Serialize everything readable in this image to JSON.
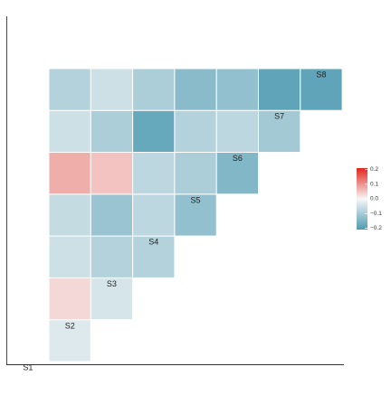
{
  "chart_data": {
    "type": "heatmap",
    "title": "",
    "xlabel": "",
    "ylabel": "",
    "variables": [
      "S1",
      "S2",
      "S3",
      "S4",
      "S5",
      "S6",
      "S7",
      "S8"
    ],
    "layout": "lower-triangle correlation matrix with variable labels on the diagonal",
    "grid": false,
    "legend": {
      "type": "colorbar",
      "position": "right",
      "range": [
        -0.2,
        0.2
      ],
      "ticks": [
        0.2,
        0.1,
        0.0,
        -0.1,
        -0.2
      ],
      "tick_labels": [
        "0.2",
        "0.1",
        "0.0",
        "−0.1",
        "−0.2"
      ],
      "colors": {
        "high": "#e2261f",
        "mid": "#f7f7f7",
        "low": "#4e9bb2"
      }
    },
    "cells": [
      {
        "row": "S2",
        "col": "S1",
        "value": -0.03
      },
      {
        "row": "S3",
        "col": "S1",
        "value": 0.03
      },
      {
        "row": "S3",
        "col": "S2",
        "value": -0.04
      },
      {
        "row": "S4",
        "col": "S1",
        "value": -0.05
      },
      {
        "row": "S4",
        "col": "S2",
        "value": -0.08
      },
      {
        "row": "S4",
        "col": "S3",
        "value": -0.08
      },
      {
        "row": "S5",
        "col": "S1",
        "value": -0.06
      },
      {
        "row": "S5",
        "col": "S2",
        "value": -0.11
      },
      {
        "row": "S5",
        "col": "S3",
        "value": -0.07
      },
      {
        "row": "S5",
        "col": "S4",
        "value": -0.12
      },
      {
        "row": "S6",
        "col": "S1",
        "value": 0.07
      },
      {
        "row": "S6",
        "col": "S2",
        "value": 0.05
      },
      {
        "row": "S6",
        "col": "S3",
        "value": -0.07
      },
      {
        "row": "S6",
        "col": "S4",
        "value": -0.09
      },
      {
        "row": "S6",
        "col": "S5",
        "value": -0.14
      },
      {
        "row": "S7",
        "col": "S1",
        "value": -0.05
      },
      {
        "row": "S7",
        "col": "S2",
        "value": -0.09
      },
      {
        "row": "S7",
        "col": "S3",
        "value": -0.17
      },
      {
        "row": "S7",
        "col": "S4",
        "value": -0.08
      },
      {
        "row": "S7",
        "col": "S5",
        "value": -0.07
      },
      {
        "row": "S7",
        "col": "S6",
        "value": -0.1
      },
      {
        "row": "S8",
        "col": "S1",
        "value": -0.08
      },
      {
        "row": "S8",
        "col": "S2",
        "value": -0.05
      },
      {
        "row": "S8",
        "col": "S3",
        "value": -0.09
      },
      {
        "row": "S8",
        "col": "S4",
        "value": -0.13
      },
      {
        "row": "S8",
        "col": "S5",
        "value": -0.12
      },
      {
        "row": "S8",
        "col": "S6",
        "value": -0.18
      },
      {
        "row": "S8",
        "col": "S7",
        "value": -0.18
      }
    ]
  }
}
